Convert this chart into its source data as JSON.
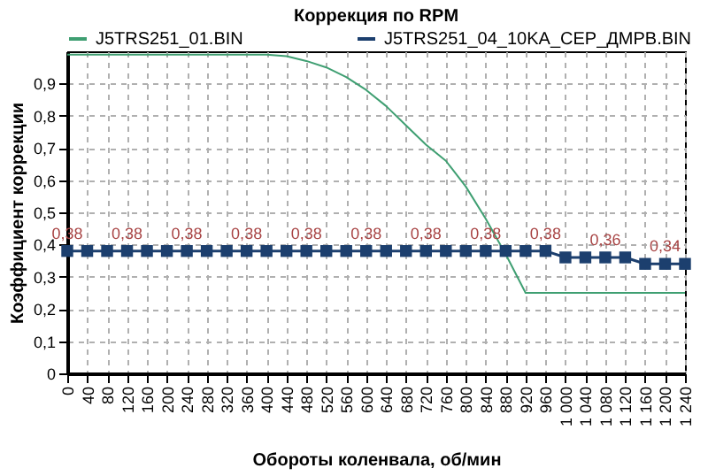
{
  "chart_data": {
    "type": "line",
    "title": "Коррекция по RPM",
    "xlabel": "Обороты коленвала, об/мин",
    "ylabel": "Коэффициент коррекции",
    "categories": [
      "0",
      "40",
      "80",
      "120",
      "160",
      "200",
      "240",
      "280",
      "320",
      "360",
      "400",
      "440",
      "480",
      "520",
      "560",
      "600",
      "640",
      "680",
      "720",
      "760",
      "800",
      "840",
      "880",
      "920",
      "960",
      "1 000",
      "1 040",
      "1 080",
      "1 120",
      "1 160",
      "1 200",
      "1 240"
    ],
    "ylim": [
      0,
      1
    ],
    "yticks": [
      {
        "value": 0,
        "label": "0"
      },
      {
        "value": 0.1,
        "label": "0,1"
      },
      {
        "value": 0.2,
        "label": "0,2"
      },
      {
        "value": 0.3,
        "label": "0,3"
      },
      {
        "value": 0.4,
        "label": "0,4"
      },
      {
        "value": 0.5,
        "label": "0,5"
      },
      {
        "value": 0.6,
        "label": "0,6"
      },
      {
        "value": 0.7,
        "label": "0,7"
      },
      {
        "value": 0.8,
        "label": "0,8"
      },
      {
        "value": 0.9,
        "label": "0,9"
      }
    ],
    "grid": true,
    "legend": "top",
    "line_style": "solid",
    "series": [
      {
        "name": "J5TRS251_01.BIN",
        "color": "#3f9f72",
        "marker": "none",
        "values": [
          0.99,
          0.99,
          0.99,
          0.99,
          0.99,
          0.99,
          0.99,
          0.99,
          0.99,
          0.99,
          0.99,
          0.985,
          0.97,
          0.95,
          0.92,
          0.88,
          0.83,
          0.77,
          0.71,
          0.66,
          0.58,
          0.48,
          0.37,
          0.25,
          0.25,
          0.25,
          0.25,
          0.25,
          0.25,
          0.25,
          0.25,
          0.25
        ]
      },
      {
        "name": "J5TRS251_04_10KA_CEP_ДМРВ.BIN",
        "color": "#1c3f6e",
        "marker": "square",
        "values": [
          0.38,
          0.38,
          0.38,
          0.38,
          0.38,
          0.38,
          0.38,
          0.38,
          0.38,
          0.38,
          0.38,
          0.38,
          0.38,
          0.38,
          0.38,
          0.38,
          0.38,
          0.38,
          0.38,
          0.38,
          0.38,
          0.38,
          0.38,
          0.38,
          0.38,
          0.36,
          0.36,
          0.36,
          0.36,
          0.34,
          0.34,
          0.34
        ],
        "value_labels": [
          "0,38",
          null,
          null,
          "0,38",
          null,
          null,
          "0,38",
          null,
          null,
          "0,38",
          null,
          null,
          "0,38",
          null,
          null,
          "0,38",
          null,
          null,
          "0,38",
          null,
          null,
          "0,38",
          null,
          null,
          "0,38",
          null,
          null,
          "0,36",
          null,
          null,
          "0,34",
          null
        ]
      }
    ]
  }
}
